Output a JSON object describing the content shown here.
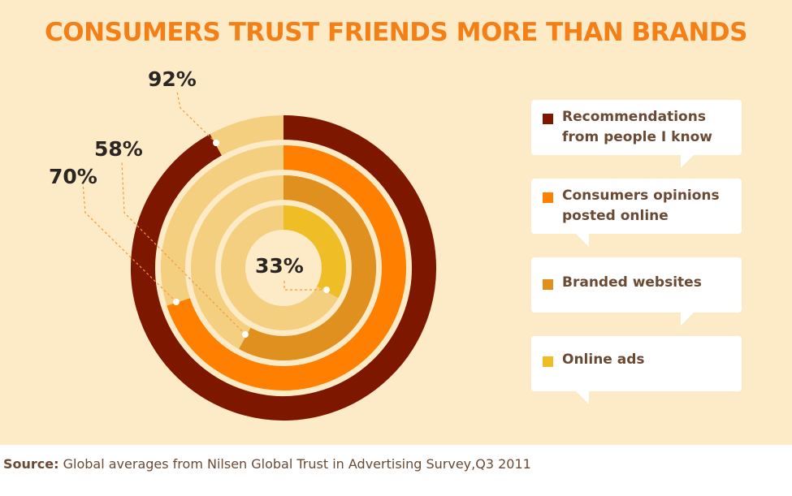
{
  "title": "CONSUMERS TRUST FRIENDS MORE THAN BRANDS",
  "footer": {
    "label": "Source:",
    "text": "Global averages from Nilsen Global Trust in Advertising Survey,Q3 2011"
  },
  "chart_data": {
    "type": "radial-bar",
    "title": "CONSUMERS TRUST FRIENDS MORE THAN BRANDS",
    "unit": "%",
    "track_color": "#f4cf80",
    "series": [
      {
        "name": "Recommendations from people I know",
        "value": 92,
        "label": "92%",
        "color": "#7e1700"
      },
      {
        "name": "Consumers opinions posted online",
        "value": 70,
        "label": "70%",
        "color": "#ff7f00"
      },
      {
        "name": "Branded websites",
        "value": 58,
        "label": "58%",
        "color": "#e0901e"
      },
      {
        "name": "Online ads",
        "value": 33,
        "label": "33%",
        "color": "#efbe27"
      }
    ]
  },
  "legend": [
    {
      "label": "Recommendations from people I know",
      "color": "#7e1700"
    },
    {
      "label": "Consumers opinions posted online",
      "color": "#ff7f00"
    },
    {
      "label": "Branded websites",
      "color": "#e0901e"
    },
    {
      "label": "Online ads",
      "color": "#efbe27"
    }
  ]
}
